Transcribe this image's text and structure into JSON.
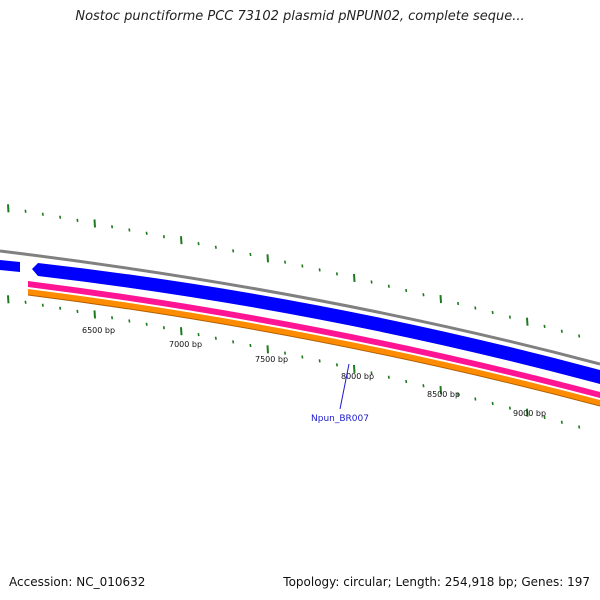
{
  "title": "Nostoc punctiforme PCC 73102 plasmid pNPUN02, complete seque...",
  "footer": {
    "accession": "Accession: NC_010632",
    "summary": "Topology: circular; Length: 254,918 bp; Genes: 197"
  },
  "map": {
    "bp_labels": [
      "6500 bp",
      "7000 bp",
      "7500 bp",
      "8000 bp",
      "8500 bp",
      "9000 bp"
    ],
    "gene_label": "Npun_BR007",
    "colors": {
      "backbone": "#808080",
      "cds_blue": "#0000ff",
      "pink": "#ff1493",
      "orange": "#ff8c00",
      "tick_green": "#1e7a1e",
      "gene_label": "#1a1acc"
    }
  }
}
